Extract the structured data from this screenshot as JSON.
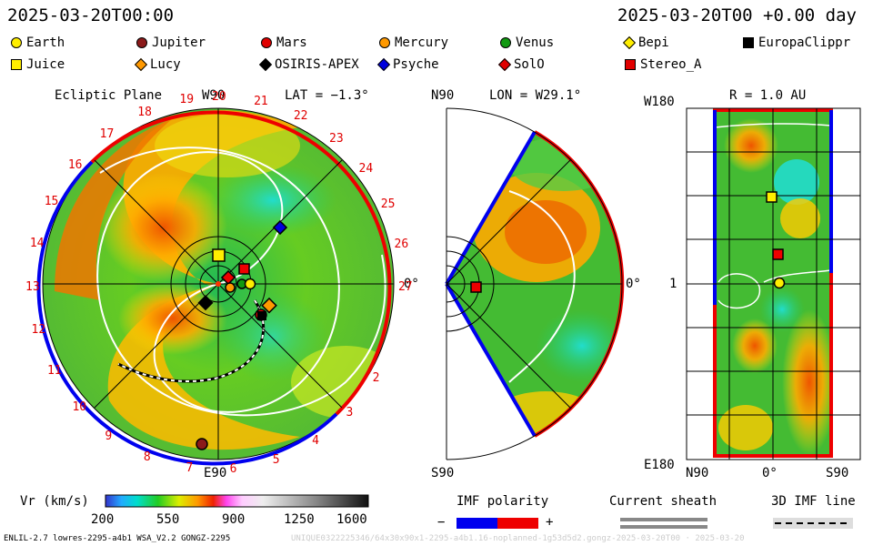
{
  "header": {
    "date_left": "2025-03-20T00:00",
    "date_right": "2025-03-20T00 +0.00 day"
  },
  "legend": [
    {
      "name": "Earth",
      "shape": "circle",
      "color": "#ffee00"
    },
    {
      "name": "Jupiter",
      "shape": "circle",
      "color": "#8b1a1a"
    },
    {
      "name": "Mars",
      "shape": "circle",
      "color": "#e00000"
    },
    {
      "name": "Mercury",
      "shape": "circle",
      "color": "#ff9900"
    },
    {
      "name": "Venus",
      "shape": "circle",
      "color": "#119911"
    },
    {
      "name": "Bepi",
      "shape": "diamond",
      "color": "#ffee00"
    },
    {
      "name": "EuropaClippr",
      "shape": "square",
      "color": "#000000"
    },
    {
      "name": "Juice",
      "shape": "square",
      "color": "#ffee00"
    },
    {
      "name": "Lucy",
      "shape": "diamond",
      "color": "#ff9900"
    },
    {
      "name": "OSIRIS-APEX",
      "shape": "diamond",
      "color": "#000000"
    },
    {
      "name": "Psyche",
      "shape": "diamond",
      "color": "#0000dd"
    },
    {
      "name": "SolO",
      "shape": "diamond",
      "color": "#e00000"
    },
    {
      "name": "Stereo_A",
      "shape": "square",
      "color": "#e00000"
    }
  ],
  "panels": {
    "ecliptic": {
      "title": "Ecliptic Plane",
      "top": "W90",
      "lat": "LAT = −1.3°",
      "bottom": "E90",
      "right": "0°"
    },
    "meridional": {
      "top": "N90",
      "lon": "LON = W29.1°",
      "bottom": "S90",
      "right": "0°"
    },
    "radial": {
      "top_left": "W180",
      "r": "R = 1.0 AU",
      "mid_left": "1",
      "bottom_left": "E180",
      "n": "N90",
      "zero": "0°",
      "s": "S90"
    }
  },
  "ticks": [
    "20",
    "21",
    "22",
    "23",
    "24",
    "25",
    "26",
    "27",
    "19",
    "18",
    "17",
    "16",
    "15",
    "14",
    "13",
    "12",
    "11",
    "10",
    "9",
    "8",
    "7",
    "6",
    "5",
    "4",
    "3",
    "2"
  ],
  "colorbar": {
    "label": "Vr (km/s)",
    "ticks": [
      "200",
      "550",
      "900",
      "1250",
      "1600"
    ]
  },
  "imf": {
    "label": "IMF polarity",
    "minus": "−",
    "plus": "+",
    "neg_color": "#0000ee",
    "pos_color": "#ee0000"
  },
  "sheath": {
    "label": "Current sheath"
  },
  "imf3d": {
    "label": "3D IMF line"
  },
  "footer": {
    "left": "ENLIL-2.7 lowres-2295-a4b1 WSA_V2.2 GONGZ-2295",
    "right": "UNIQUE0322225346/64x30x90x1-2295-a4b1.16-noplanned-1g53d5d2.gongz-2025-03-20T00 · 2025-03-20"
  }
}
